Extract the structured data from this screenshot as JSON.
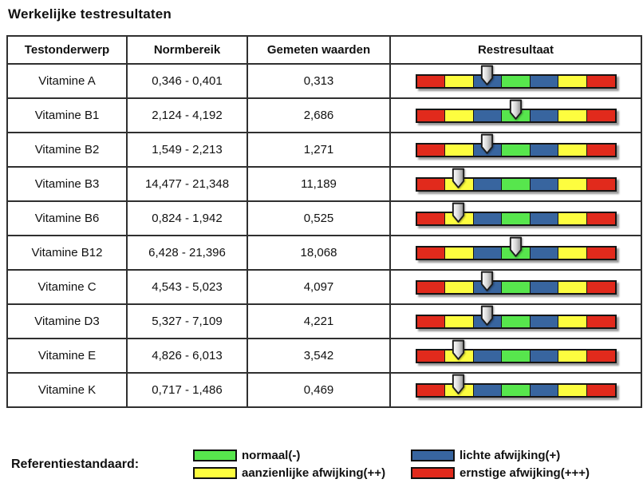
{
  "title": "Werkelijke testresultaten",
  "table": {
    "headers": [
      "Testonderwerp",
      "Normbereik",
      "Gemeten waarden",
      "Restresultaat"
    ],
    "rows": [
      {
        "subject": "Vitamine A",
        "range": "0,346 - 0,401",
        "measured": "0,313",
        "arrow_pos": 0.357
      },
      {
        "subject": "Vitamine B1",
        "range": "2,124 - 4,192",
        "measured": "2,686",
        "arrow_pos": 0.5
      },
      {
        "subject": "Vitamine B2",
        "range": "1,549 - 2,213",
        "measured": "1,271",
        "arrow_pos": 0.357
      },
      {
        "subject": "Vitamine B3",
        "range": "14,477 - 21,348",
        "measured": "11,189",
        "arrow_pos": 0.214
      },
      {
        "subject": "Vitamine B6",
        "range": "0,824 - 1,942",
        "measured": "0,525",
        "arrow_pos": 0.214
      },
      {
        "subject": "Vitamine B12",
        "range": "6,428 - 21,396",
        "measured": "18,068",
        "arrow_pos": 0.5
      },
      {
        "subject": "Vitamine C",
        "range": "4,543 - 5,023",
        "measured": "4,097",
        "arrow_pos": 0.357
      },
      {
        "subject": "Vitamine D3",
        "range": "5,327 - 7,109",
        "measured": "4,221",
        "arrow_pos": 0.357
      },
      {
        "subject": "Vitamine E",
        "range": "4,826 - 6,013",
        "measured": "3,542",
        "arrow_pos": 0.214
      },
      {
        "subject": "Vitamine K",
        "range": "0,717 - 1,486",
        "measured": "0,469",
        "arrow_pos": 0.214
      }
    ]
  },
  "result_bar": {
    "segment_order": [
      "red",
      "yellow",
      "blue",
      "green",
      "blue",
      "yellow",
      "red"
    ],
    "colors": {
      "red": "#e12a1c",
      "yellow": "#fdfd3f",
      "blue": "#38659f",
      "green": "#57e64d"
    },
    "arrow_icon": "down-arrow-marker"
  },
  "legend": {
    "label": "Referentiestandaard:",
    "items": [
      {
        "color_key": "green",
        "text": "normaal(-)"
      },
      {
        "color_key": "yellow",
        "text": "aanzienlijke afwijking(++)"
      },
      {
        "color_key": "blue",
        "text": "lichte afwijking(+)"
      },
      {
        "color_key": "red",
        "text": "ernstige afwijking(+++)"
      }
    ]
  }
}
